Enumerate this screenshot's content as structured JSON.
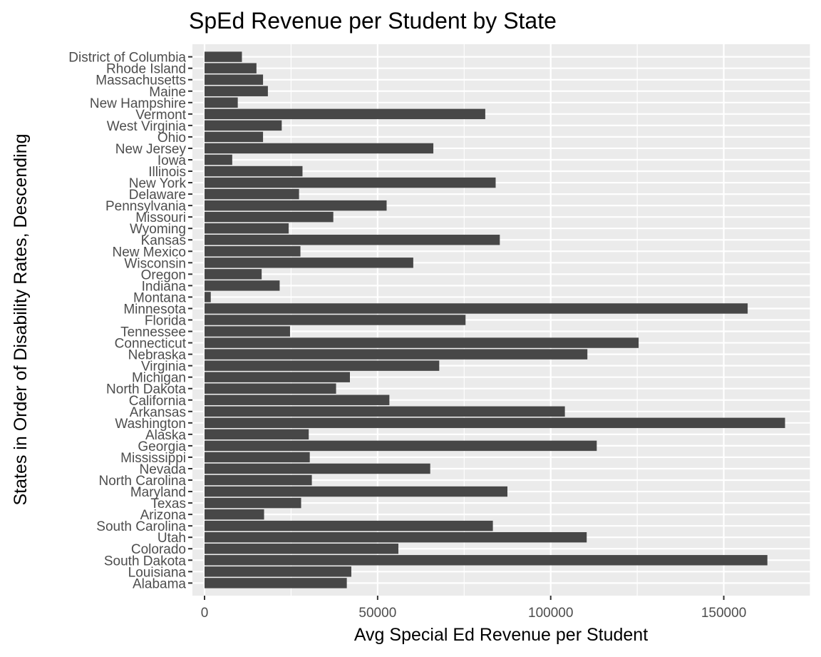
{
  "chart_data": {
    "type": "bar",
    "orientation": "horizontal",
    "title": "SpEd Revenue per Student by State",
    "xlabel": "Avg Special Ed Revenue per Student",
    "ylabel": "States in Order of Disability Rates, Descending",
    "xlim": [
      -3500,
      175000
    ],
    "xticks": [
      0,
      50000,
      100000,
      150000
    ],
    "xtick_labels": [
      "0",
      "50000",
      "100000",
      "150000"
    ],
    "grid": true,
    "colors": {
      "panel": "#ebebeb",
      "bar": "#474747",
      "grid": "#ffffff"
    },
    "categories": [
      "District of Columbia",
      "Rhode Island",
      "Massachusetts",
      "Maine",
      "New Hampshire",
      "Vermont",
      "West Virginia",
      "Ohio",
      "New Jersey",
      "Iowa",
      "Illinois",
      "New York",
      "Delaware",
      "Pennsylvania",
      "Missouri",
      "Wyoming",
      "Kansas",
      "New Mexico",
      "Wisconsin",
      "Oregon",
      "Indiana",
      "Montana",
      "Minnesota",
      "Florida",
      "Tennessee",
      "Connecticut",
      "Nebraska",
      "Virginia",
      "Michigan",
      "North Dakota",
      "California",
      "Arkansas",
      "Washington",
      "Alaska",
      "Georgia",
      "Mississippi",
      "Nevada",
      "North Carolina",
      "Maryland",
      "Texas",
      "Arizona",
      "South Carolina",
      "Utah",
      "Colorado",
      "South Dakota",
      "Louisiana",
      "Alabama"
    ],
    "values": [
      10800,
      15000,
      16900,
      18300,
      9600,
      81100,
      22300,
      16900,
      66100,
      8000,
      28300,
      84100,
      27300,
      52600,
      37200,
      24300,
      85300,
      27700,
      60300,
      16500,
      21700,
      1800,
      156900,
      75400,
      24700,
      125400,
      110600,
      67800,
      42000,
      38000,
      53400,
      104100,
      167700,
      30100,
      113300,
      30400,
      65200,
      31000,
      87500,
      27900,
      17200,
      83300,
      110400,
      56000,
      162600,
      42400,
      41100
    ]
  }
}
